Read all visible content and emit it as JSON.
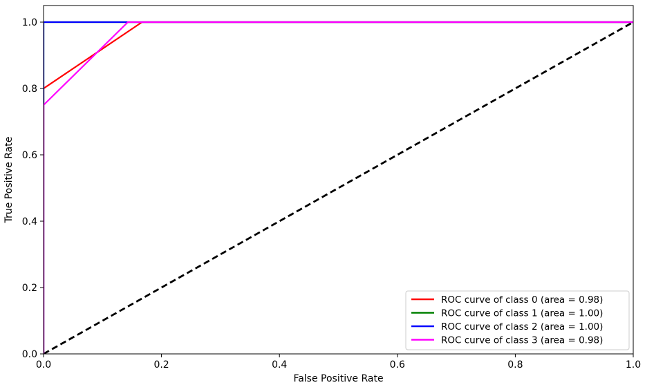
{
  "chart_data": {
    "type": "line",
    "title": "",
    "xlabel": "False Positive Rate",
    "ylabel": "True Positive Rate",
    "xlim": [
      0.0,
      1.0
    ],
    "ylim": [
      0.0,
      1.05
    ],
    "x_ticks": [
      "0.0",
      "0.2",
      "0.4",
      "0.6",
      "0.8",
      "1.0"
    ],
    "y_ticks": [
      "0.0",
      "0.2",
      "0.4",
      "0.6",
      "0.8",
      "1.0"
    ],
    "grid": false,
    "legend_position": "bottom-right",
    "series": [
      {
        "name": "ROC curve of class 0 (area = 0.98)",
        "color": "#ff0000",
        "x": [
          0.0,
          0.0,
          0.167,
          1.0
        ],
        "y": [
          0.0,
          0.8,
          1.0,
          1.0
        ]
      },
      {
        "name": "ROC curve of class 1 (area = 1.00)",
        "color": "#008000",
        "x": [
          0.0,
          0.0,
          1.0
        ],
        "y": [
          0.0,
          1.0,
          1.0
        ]
      },
      {
        "name": "ROC curve of class 2 (area = 1.00)",
        "color": "#0000ff",
        "x": [
          0.0,
          0.0,
          0.143,
          1.0
        ],
        "y": [
          0.0,
          1.0,
          1.0,
          1.0
        ]
      },
      {
        "name": "ROC curve of class 3 (area = 0.98)",
        "color": "#ff00ff",
        "x": [
          0.0,
          0.0,
          0.143,
          1.0
        ],
        "y": [
          0.0,
          0.75,
          1.0,
          1.0
        ]
      }
    ],
    "reference_line": {
      "x": [
        0.0,
        1.0
      ],
      "y": [
        0.0,
        1.0
      ],
      "color": "#000000",
      "style": "dashed"
    }
  }
}
